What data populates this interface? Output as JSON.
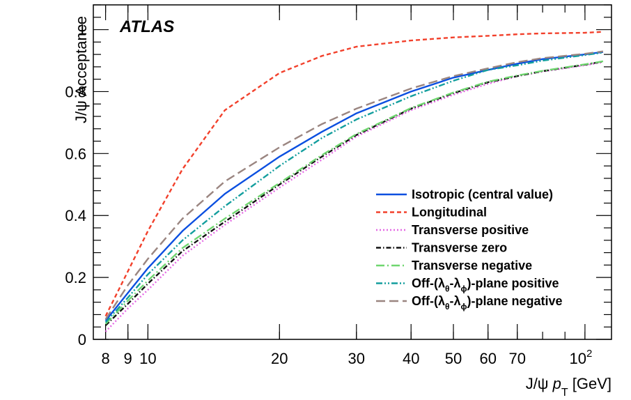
{
  "chart_data": {
    "type": "line",
    "atlas_label": "ATLAS",
    "ylabel": "J/ψ Acceptance",
    "xlabel_parts": [
      "J/ψ ",
      "p",
      "T",
      " [GeV]"
    ],
    "xscale": "log",
    "xlim": [
      7.5,
      115
    ],
    "ylim": [
      0,
      1.08
    ],
    "x_ticks": [
      {
        "value": 8,
        "label": "8"
      },
      {
        "value": 9,
        "label": "9"
      },
      {
        "value": 10,
        "label": "10"
      },
      {
        "value": 20,
        "label": "20"
      },
      {
        "value": 30,
        "label": "30"
      },
      {
        "value": 40,
        "label": "40"
      },
      {
        "value": 50,
        "label": "50"
      },
      {
        "value": 60,
        "label": "60"
      },
      {
        "value": 70,
        "label": "70"
      },
      {
        "value": 100,
        "label": "10",
        "exponent": "2"
      }
    ],
    "y_ticks": [
      {
        "value": 0,
        "label": "0"
      },
      {
        "value": 0.2,
        "label": "0.2"
      },
      {
        "value": 0.4,
        "label": "0.4"
      },
      {
        "value": 0.6,
        "label": "0.6"
      },
      {
        "value": 0.8,
        "label": "0.8"
      },
      {
        "value": 1,
        "label": "1"
      }
    ],
    "x": [
      8,
      9,
      10,
      12,
      15,
      20,
      25,
      30,
      40,
      50,
      60,
      70,
      80,
      100,
      110
    ],
    "series": [
      {
        "name": "Isotropic (central value)",
        "color": "#0b4fe0",
        "dash": "solid",
        "values": [
          0.06,
          0.15,
          0.23,
          0.35,
          0.47,
          0.59,
          0.67,
          0.73,
          0.8,
          0.845,
          0.87,
          0.89,
          0.905,
          0.92,
          0.928
        ]
      },
      {
        "name": "Longitudinal",
        "color": "#f2402b",
        "dash": "short-dash",
        "values": [
          0.075,
          0.22,
          0.35,
          0.55,
          0.74,
          0.86,
          0.915,
          0.945,
          0.965,
          0.975,
          0.98,
          0.985,
          0.988,
          0.99,
          0.993
        ]
      },
      {
        "name": "Transverse positive",
        "color": "#e468e4",
        "dash": "dot",
        "values": [
          0.025,
          0.1,
          0.16,
          0.27,
          0.37,
          0.49,
          0.58,
          0.655,
          0.74,
          0.79,
          0.825,
          0.85,
          0.865,
          0.885,
          0.895
        ]
      },
      {
        "name": "Transverse zero",
        "color": "#111111",
        "dash": "dash-dot",
        "values": [
          0.045,
          0.115,
          0.18,
          0.285,
          0.38,
          0.5,
          0.59,
          0.66,
          0.745,
          0.795,
          0.83,
          0.85,
          0.866,
          0.887,
          0.897
        ]
      },
      {
        "name": "Transverse negative",
        "color": "#6fd66f",
        "dash": "long-dash-dot",
        "values": [
          0.05,
          0.125,
          0.19,
          0.295,
          0.39,
          0.505,
          0.595,
          0.663,
          0.747,
          0.797,
          0.832,
          0.852,
          0.867,
          0.888,
          0.898
        ]
      },
      {
        "name": "Off-(λθ-λϕ)-plane positive",
        "color": "#139e9e",
        "dash": "dash-dot-dot",
        "values": [
          0.055,
          0.135,
          0.21,
          0.32,
          0.43,
          0.56,
          0.65,
          0.71,
          0.785,
          0.835,
          0.87,
          0.885,
          0.9,
          0.918,
          0.926
        ]
      },
      {
        "name": "Off-(λθ-λϕ)-plane negative",
        "color": "#9a8580",
        "dash": "long-dash",
        "values": [
          0.065,
          0.175,
          0.26,
          0.39,
          0.51,
          0.62,
          0.695,
          0.745,
          0.81,
          0.85,
          0.875,
          0.895,
          0.908,
          0.922,
          0.93
        ]
      }
    ],
    "legend_position": "center-right"
  }
}
